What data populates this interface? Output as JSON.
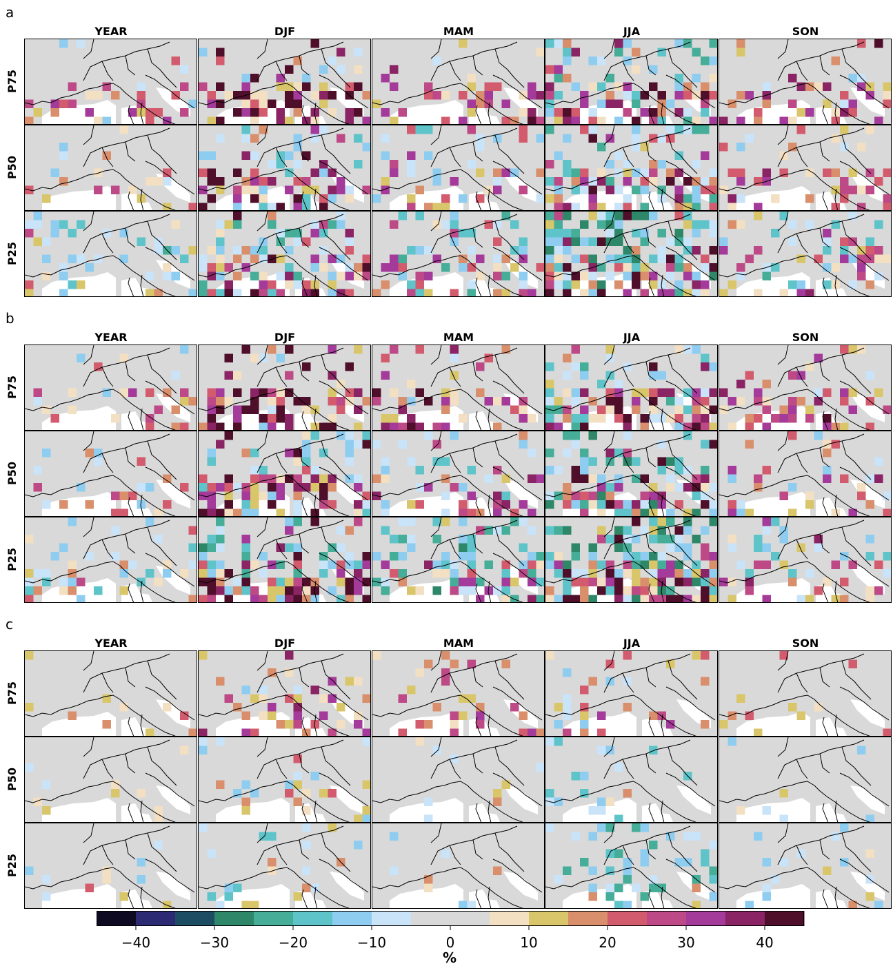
{
  "panels": [
    {
      "letter": "a",
      "columns": [
        "YEAR",
        "DJF",
        "MAM",
        "JJA",
        "SON"
      ],
      "rows": [
        "P75",
        "P50",
        "P25"
      ],
      "intensity": [
        [
          0.35,
          0.9,
          0.55,
          0.7,
          0.55
        ],
        [
          0.3,
          0.75,
          0.45,
          0.65,
          0.5
        ],
        [
          0.25,
          0.7,
          0.4,
          0.8,
          0.45
        ]
      ],
      "negative": [
        [
          0.05,
          0.1,
          0.05,
          0.5,
          0.05
        ],
        [
          0.1,
          0.3,
          0.2,
          0.7,
          0.1
        ],
        [
          0.4,
          0.6,
          0.5,
          0.9,
          0.4
        ]
      ]
    },
    {
      "letter": "b",
      "columns": [
        "YEAR",
        "DJF",
        "MAM",
        "JJA",
        "SON"
      ],
      "rows": [
        "P75",
        "P50",
        "P25"
      ],
      "intensity": [
        [
          0.35,
          0.95,
          0.55,
          0.75,
          0.55
        ],
        [
          0.3,
          0.85,
          0.45,
          0.7,
          0.45
        ],
        [
          0.3,
          0.85,
          0.45,
          0.8,
          0.45
        ]
      ],
      "negative": [
        [
          0.05,
          0.1,
          0.1,
          0.5,
          0.05
        ],
        [
          0.1,
          0.4,
          0.3,
          0.75,
          0.1
        ],
        [
          0.4,
          0.7,
          0.7,
          0.95,
          0.3
        ]
      ]
    },
    {
      "letter": "c",
      "columns": [
        "YEAR",
        "DJF",
        "MAM",
        "JJA",
        "SON"
      ],
      "rows": [
        "P75",
        "P50",
        "P25"
      ],
      "intensity": [
        [
          0.15,
          0.5,
          0.35,
          0.3,
          0.15
        ],
        [
          0.05,
          0.2,
          0.05,
          0.05,
          0.05
        ],
        [
          0.05,
          0.1,
          0.05,
          0.05,
          0.05
        ]
      ],
      "negative": [
        [
          0.0,
          0.05,
          0.0,
          0.05,
          0.0
        ],
        [
          0.05,
          0.1,
          0.05,
          0.3,
          0.05
        ],
        [
          0.05,
          0.3,
          0.05,
          0.6,
          0.2
        ]
      ]
    }
  ],
  "colorbar": {
    "bounds": [
      -45,
      45
    ],
    "step": 5,
    "colors": [
      "#0d0a22",
      "#2b2a72",
      "#1d4d63",
      "#2e8768",
      "#45ad98",
      "#5ec4c9",
      "#8fcdf0",
      "#c9e3f9",
      "#d9d9d9",
      "#d9d9d9",
      "#f3dfc2",
      "#d9c66b",
      "#d98e6c",
      "#d35b6e",
      "#bd4a86",
      "#a43a99",
      "#8a2464",
      "#4f0f2a"
    ],
    "ticks": [
      "−40",
      "−30",
      "−20",
      "−10",
      "0",
      "10",
      "20",
      "30",
      "40"
    ],
    "tick_values": [
      -40,
      -30,
      -20,
      -10,
      0,
      10,
      20,
      30,
      40
    ],
    "label": "%"
  }
}
